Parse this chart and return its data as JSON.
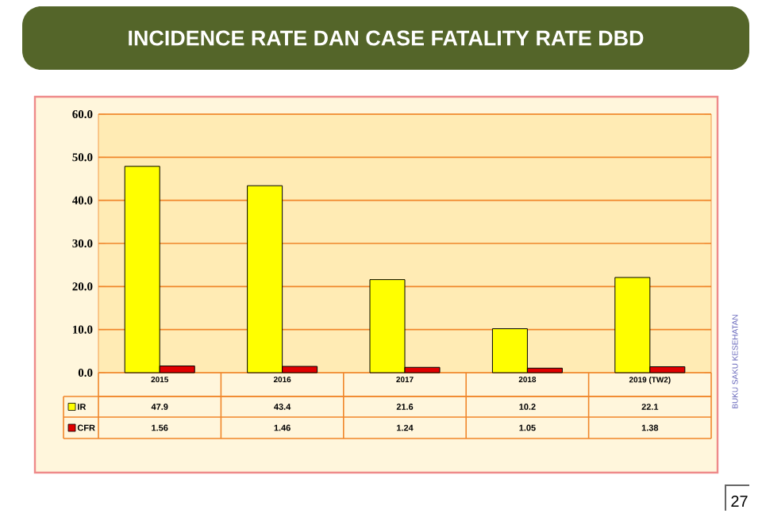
{
  "chart_data": {
    "type": "bar",
    "title": "INCIDENCE RATE DAN CASE FATALITY RATE DBD",
    "categories": [
      "2015",
      "2016",
      "2017",
      "2018",
      "2019 (TW2)"
    ],
    "series": [
      {
        "name": "IR",
        "color": "#ffff00",
        "values": [
          47.9,
          43.4,
          21.6,
          10.2,
          22.1
        ]
      },
      {
        "name": "CFR",
        "color": "#e00000",
        "values": [
          1.56,
          1.46,
          1.24,
          1.05,
          1.38
        ]
      }
    ],
    "ylim": [
      0,
      60
    ],
    "yticks": [
      {
        "value": 0,
        "label": "0.0"
      },
      {
        "value": 10,
        "label": "10.0"
      },
      {
        "value": 20,
        "label": "20.0"
      },
      {
        "value": 30,
        "label": "30.0"
      },
      {
        "value": 40,
        "label": "40.0"
      },
      {
        "value": 50,
        "label": "50.0"
      },
      {
        "value": 60,
        "label": "60.0"
      }
    ],
    "grid": "y",
    "legend": "bottom",
    "data_labels": true,
    "annotations": [
      "BUKU SAKU KESEHATAN",
      "27"
    ]
  }
}
